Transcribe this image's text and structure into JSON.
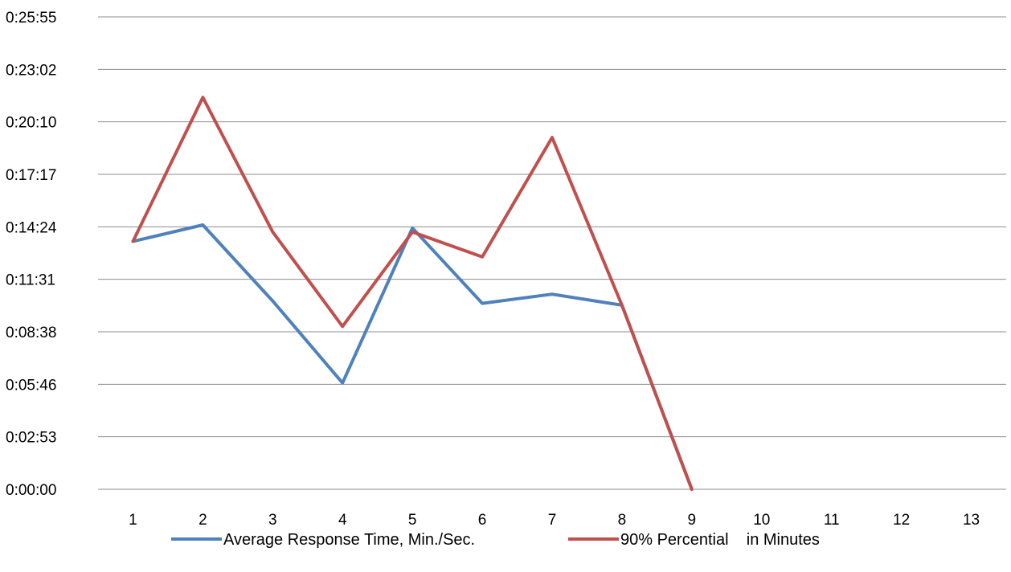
{
  "chart_data": {
    "type": "line",
    "title": "",
    "xlabel": "",
    "ylabel": "",
    "categories": [
      "1",
      "2",
      "3",
      "4",
      "5",
      "6",
      "7",
      "8",
      "9",
      "10",
      "11",
      "12",
      "13"
    ],
    "y_tick_labels": [
      "0:00:00",
      "0:02:53",
      "0:05:46",
      "0:08:38",
      "0:11:31",
      "0:14:24",
      "0:17:17",
      "0:20:10",
      "0:23:02",
      "0:25:55"
    ],
    "ylim_seconds": [
      0,
      1555
    ],
    "y_unit": "h:mm:ss",
    "grid": "horizontal",
    "legend_position": "bottom",
    "series": [
      {
        "name": "Average Response Time, Min./Sec.",
        "color": "#4F81BD",
        "values_seconds": [
          816,
          870,
          620,
          350,
          860,
          612,
          642,
          606,
          0
        ]
      },
      {
        "name": "90% Percential    in Minutes",
        "color": "#C0504D",
        "values_seconds": [
          816,
          1290,
          847,
          536,
          847,
          765,
          1158,
          606,
          0
        ]
      }
    ]
  }
}
